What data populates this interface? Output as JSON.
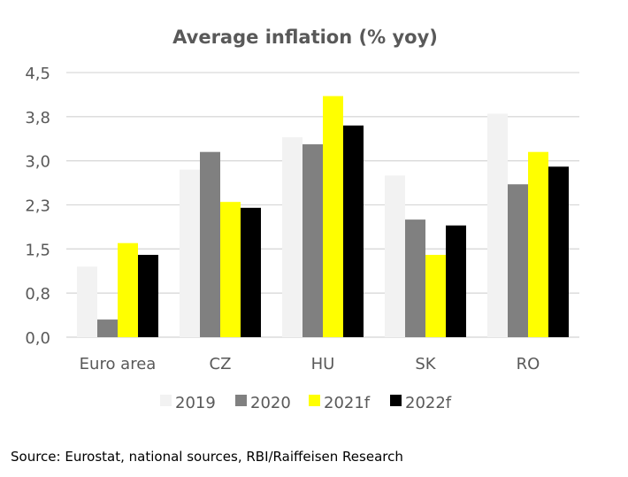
{
  "chart_data": {
    "type": "bar",
    "title": "Average inflation (% yoy)",
    "categories": [
      "Euro area",
      "CZ",
      "HU",
      "SK",
      "RO"
    ],
    "series": [
      {
        "name": "2019",
        "color": "#f2f2f2",
        "values": [
          1.2,
          2.85,
          3.4,
          2.75,
          3.8
        ]
      },
      {
        "name": "2020",
        "color": "#808080",
        "values": [
          0.3,
          3.15,
          3.28,
          2.0,
          2.6
        ]
      },
      {
        "name": "2021f",
        "color": "#ffff00",
        "values": [
          1.6,
          2.3,
          4.1,
          1.4,
          3.15
        ]
      },
      {
        "name": "2022f",
        "color": "#000000",
        "values": [
          1.4,
          2.2,
          3.6,
          1.9,
          2.9
        ]
      }
    ],
    "yticks": [
      "0,0",
      "0,8",
      "1,5",
      "2,3",
      "3,0",
      "3,8",
      "4,5"
    ],
    "ylim": [
      0,
      4.5
    ],
    "grid": true,
    "legend_position": "bottom"
  },
  "source": "Source: Eurostat, national sources, RBI/Raiffeisen Research"
}
